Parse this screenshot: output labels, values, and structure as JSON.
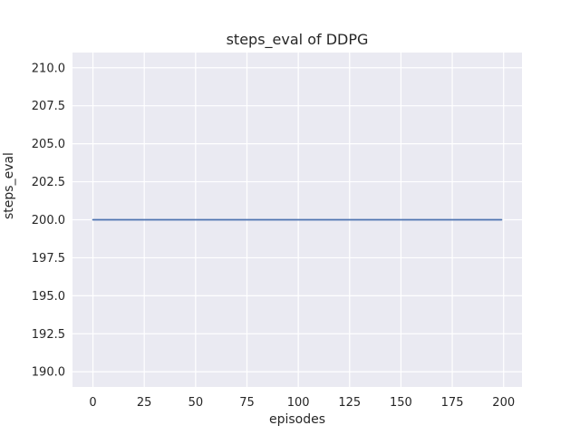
{
  "chart_data": {
    "type": "line",
    "title": "steps_eval of DDPG",
    "xlabel": "episodes",
    "ylabel": "steps_eval",
    "xlim": [
      -9.95,
      208.95
    ],
    "ylim": [
      189.0,
      211.0
    ],
    "xticks": [
      0,
      25,
      50,
      75,
      100,
      125,
      150,
      175,
      200
    ],
    "xtick_labels": [
      "0",
      "25",
      "50",
      "75",
      "100",
      "125",
      "150",
      "175",
      "200"
    ],
    "yticks": [
      190.0,
      192.5,
      195.0,
      197.5,
      200.0,
      202.5,
      205.0,
      207.5,
      210.0
    ],
    "ytick_labels": [
      "190.0",
      "192.5",
      "195.0",
      "197.5",
      "200.0",
      "202.5",
      "205.0",
      "207.5",
      "210.0"
    ],
    "grid": true,
    "legend": "none",
    "series": [
      {
        "name": "DDPG steps_eval",
        "x": [
          0,
          199
        ],
        "y": [
          200.0,
          200.0
        ],
        "color": "#4c72b0"
      }
    ],
    "colors": {
      "figure_bg": "#ffffff",
      "plot_bg": "#eaeaf2",
      "grid": "#ffffff",
      "text": "#262626",
      "line": "#4c72b0"
    }
  }
}
